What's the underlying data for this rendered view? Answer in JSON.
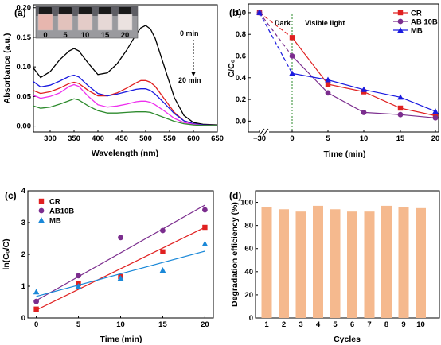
{
  "chart_data": [
    {
      "panel": "(a)",
      "type": "line",
      "xlabel": "Wavelength (nm)",
      "ylabel": "Absorbance (a.u.)",
      "xlim": [
        265,
        650
      ],
      "ylim": [
        -0.01,
        0.205
      ],
      "xticks": [
        300,
        350,
        400,
        450,
        500,
        550,
        600,
        650
      ],
      "yticks": [
        0.0,
        0.05,
        0.1,
        0.15,
        0.2
      ],
      "ytick_labels": [
        "0.00",
        "0.05",
        "0.10",
        "0.15",
        "0.20"
      ],
      "annotations": {
        "start": "0 min",
        "end": "20 min"
      },
      "inset": {
        "vial_labels": [
          "0",
          "5",
          "10",
          "15",
          "20"
        ]
      },
      "series": [
        {
          "color": "#000000",
          "x": [
            265,
            280,
            300,
            320,
            340,
            350,
            360,
            380,
            400,
            420,
            440,
            460,
            480,
            490,
            500,
            510,
            520,
            540,
            560,
            580,
            600,
            620,
            650
          ],
          "y": [
            0.098,
            0.082,
            0.092,
            0.112,
            0.127,
            0.131,
            0.127,
            0.106,
            0.087,
            0.09,
            0.105,
            0.128,
            0.155,
            0.166,
            0.17,
            0.164,
            0.148,
            0.098,
            0.048,
            0.018,
            0.006,
            0.003,
            0.002
          ]
        },
        {
          "color": "#e02020",
          "x": [
            265,
            280,
            300,
            320,
            340,
            350,
            360,
            380,
            400,
            420,
            440,
            460,
            480,
            490,
            500,
            510,
            520,
            540,
            560,
            580,
            600,
            620,
            650
          ],
          "y": [
            0.06,
            0.055,
            0.058,
            0.064,
            0.072,
            0.074,
            0.072,
            0.06,
            0.051,
            0.051,
            0.056,
            0.064,
            0.073,
            0.077,
            0.077,
            0.074,
            0.067,
            0.045,
            0.023,
            0.009,
            0.004,
            0.002,
            0.001
          ]
        },
        {
          "color": "#1a1adf",
          "x": [
            265,
            280,
            300,
            320,
            340,
            350,
            360,
            380,
            400,
            420,
            440,
            460,
            480,
            490,
            500,
            510,
            520,
            540,
            560,
            580,
            600,
            620,
            650
          ],
          "y": [
            0.075,
            0.066,
            0.069,
            0.076,
            0.084,
            0.086,
            0.083,
            0.068,
            0.055,
            0.051,
            0.054,
            0.058,
            0.062,
            0.063,
            0.063,
            0.06,
            0.054,
            0.038,
            0.021,
            0.009,
            0.004,
            0.002,
            0.001
          ]
        },
        {
          "color": "#ee30ee",
          "x": [
            265,
            280,
            300,
            320,
            340,
            350,
            360,
            380,
            400,
            420,
            440,
            460,
            480,
            490,
            500,
            510,
            520,
            540,
            560,
            580,
            600,
            620,
            650
          ],
          "y": [
            0.052,
            0.047,
            0.05,
            0.056,
            0.067,
            0.07,
            0.067,
            0.05,
            0.036,
            0.032,
            0.034,
            0.037,
            0.041,
            0.042,
            0.042,
            0.04,
            0.036,
            0.025,
            0.013,
            0.006,
            0.003,
            0.001,
            0.001
          ]
        },
        {
          "color": "#2e8b2e",
          "x": [
            265,
            280,
            300,
            320,
            340,
            350,
            360,
            380,
            400,
            420,
            440,
            460,
            480,
            490,
            500,
            510,
            520,
            540,
            560,
            580,
            600,
            620,
            650
          ],
          "y": [
            0.034,
            0.03,
            0.032,
            0.037,
            0.043,
            0.046,
            0.044,
            0.034,
            0.026,
            0.022,
            0.022,
            0.023,
            0.024,
            0.024,
            0.024,
            0.023,
            0.02,
            0.014,
            0.008,
            0.004,
            0.002,
            0.001,
            0.001
          ]
        }
      ]
    },
    {
      "panel": "(b)",
      "type": "line",
      "xlabel": "Time (min)",
      "ylabel": "C/C₀",
      "ylim": [
        -0.1,
        1.08
      ],
      "x": [
        -30,
        0,
        5,
        10,
        15,
        20
      ],
      "xtick_labels": [
        "−30",
        "0",
        "5",
        "10",
        "15",
        "20"
      ],
      "yticks": [
        0.0,
        0.2,
        0.4,
        0.6,
        0.8,
        1.0
      ],
      "ytick_labels": [
        "0.0",
        "0.2",
        "0.4",
        "0.6",
        "0.8",
        "1.0"
      ],
      "annotations": {
        "dark": "Dark",
        "light": "Visible light"
      },
      "legend_position": "top-right",
      "series": [
        {
          "name": "CR",
          "color": "#e02020",
          "marker": "square",
          "y": [
            1.0,
            0.77,
            0.34,
            0.27,
            0.12,
            0.05
          ]
        },
        {
          "name": "AB 10B",
          "color": "#7b2d8e",
          "marker": "circle",
          "y": [
            1.0,
            0.6,
            0.26,
            0.08,
            0.06,
            0.03
          ]
        },
        {
          "name": "MB",
          "color": "#1a1adf",
          "marker": "triangle",
          "y": [
            1.0,
            0.44,
            0.38,
            0.29,
            0.22,
            0.09
          ]
        }
      ]
    },
    {
      "panel": "(c)",
      "type": "scatter",
      "xlabel": "Time (min)",
      "ylabel": "ln(C₀/C)",
      "xlim": [
        -1,
        21
      ],
      "ylim": [
        0,
        4
      ],
      "xticks": [
        0,
        5,
        10,
        15,
        20
      ],
      "yticks": [
        0,
        1,
        2,
        3,
        4
      ],
      "legend_position": "top-left",
      "x": [
        0,
        5,
        10,
        15,
        20
      ],
      "series": [
        {
          "name": "CR",
          "color": "#e02020",
          "marker": "square",
          "y": [
            0.28,
            1.08,
            1.3,
            2.08,
            2.85
          ],
          "fit": [
            0.25,
            2.85
          ]
        },
        {
          "name": "AB10B",
          "color": "#7b2d8e",
          "marker": "circle",
          "y": [
            0.52,
            1.33,
            2.53,
            2.75,
            3.4
          ],
          "fit": [
            0.55,
            3.55
          ]
        },
        {
          "name": "MB",
          "color": "#1a88d8",
          "marker": "triangle",
          "y": [
            0.82,
            1.0,
            1.25,
            1.5,
            2.33
          ],
          "fit": [
            0.68,
            2.1
          ]
        }
      ]
    },
    {
      "panel": "(d)",
      "type": "bar",
      "xlabel": "Cycles",
      "ylabel": "Degradation efficiency (%)",
      "ylim": [
        0,
        110
      ],
      "yticks": [
        0,
        20,
        40,
        60,
        80,
        100
      ],
      "categories": [
        "1",
        "2",
        "3",
        "4",
        "5",
        "6",
        "7",
        "8",
        "9",
        "10"
      ],
      "values": [
        96,
        94,
        92,
        97,
        94,
        92,
        92,
        97,
        96,
        95
      ],
      "color": "#f5b98e"
    }
  ]
}
